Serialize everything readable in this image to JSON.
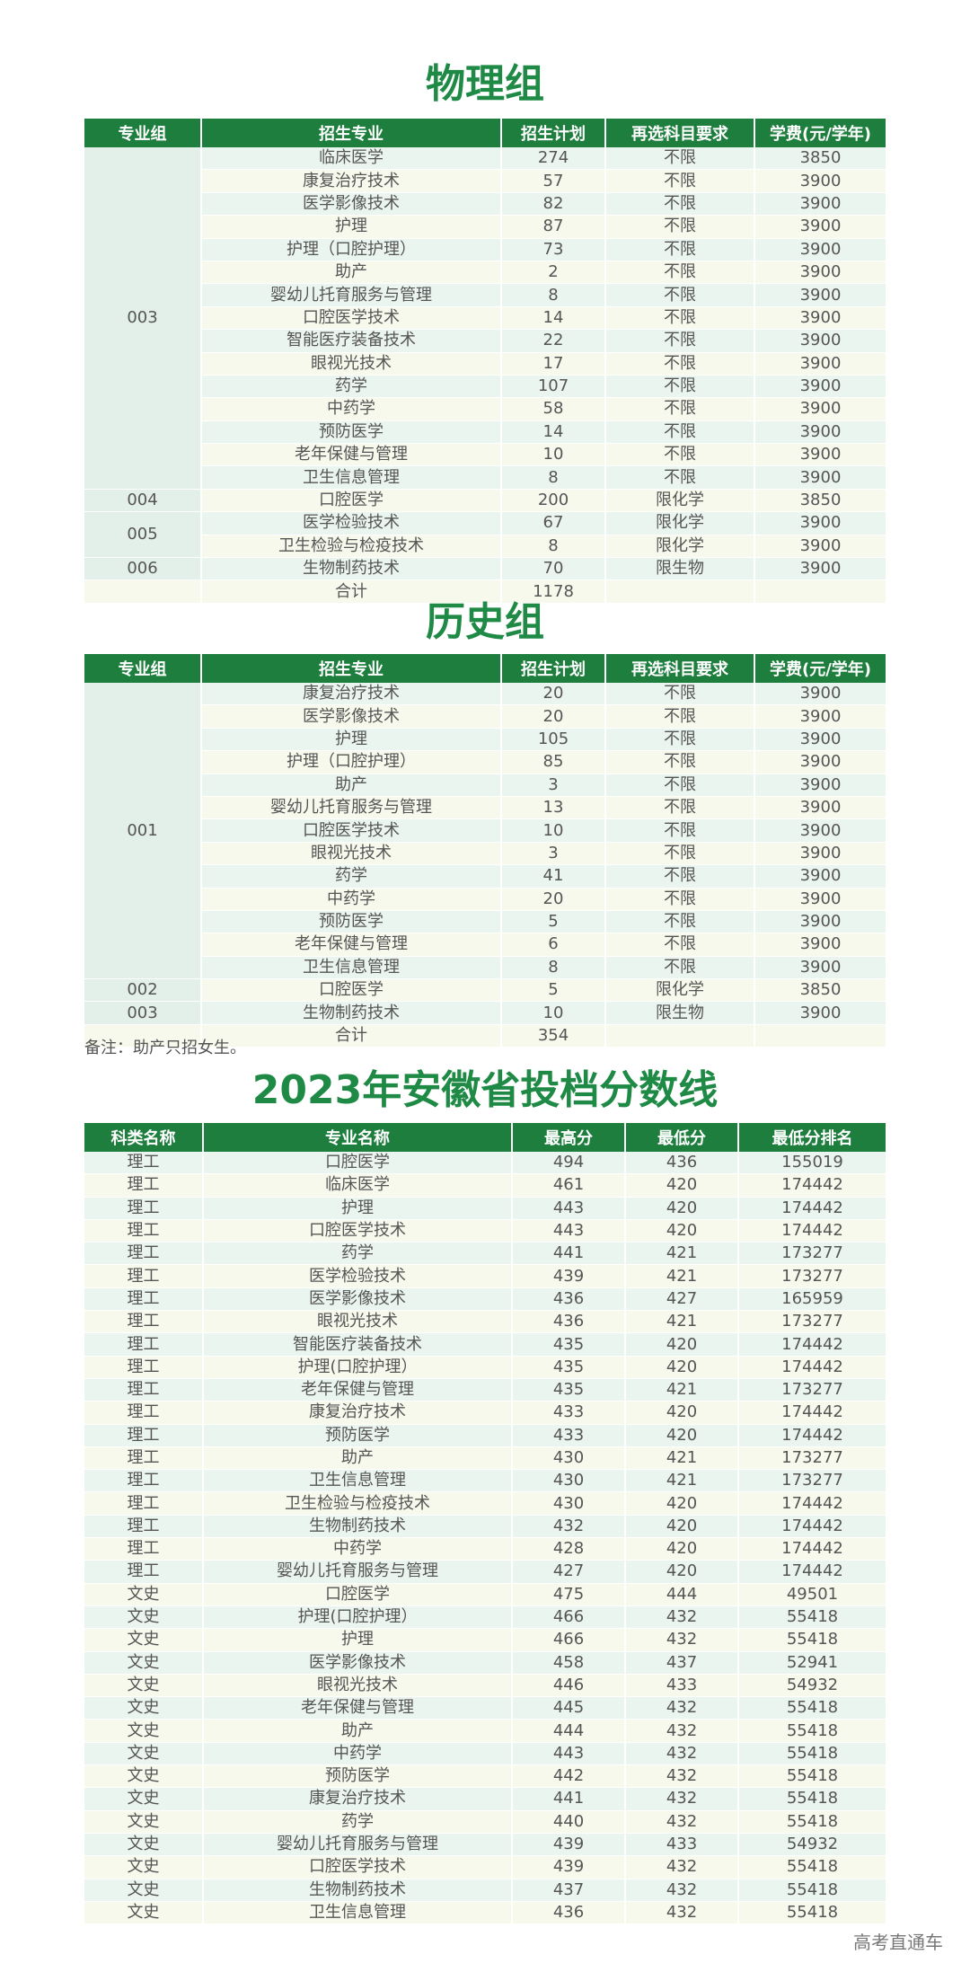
{
  "physics": {
    "title": "物理组",
    "headers": [
      "专业组",
      "招生专业",
      "招生计划",
      "再选科目要求",
      "学费(元/学年)"
    ],
    "groups": [
      {
        "group": "003",
        "rows": [
          [
            "临床医学",
            "274",
            "不限",
            "3850"
          ],
          [
            "康复治疗技术",
            "57",
            "不限",
            "3900"
          ],
          [
            "医学影像技术",
            "82",
            "不限",
            "3900"
          ],
          [
            "护理",
            "87",
            "不限",
            "3900"
          ],
          [
            "护理（口腔护理）",
            "73",
            "不限",
            "3900"
          ],
          [
            "助产",
            "2",
            "不限",
            "3900"
          ],
          [
            "婴幼儿托育服务与管理",
            "8",
            "不限",
            "3900"
          ],
          [
            "口腔医学技术",
            "14",
            "不限",
            "3900"
          ],
          [
            "智能医疗装备技术",
            "22",
            "不限",
            "3900"
          ],
          [
            "眼视光技术",
            "17",
            "不限",
            "3900"
          ],
          [
            "药学",
            "107",
            "不限",
            "3900"
          ],
          [
            "中药学",
            "58",
            "不限",
            "3900"
          ],
          [
            "预防医学",
            "14",
            "不限",
            "3900"
          ],
          [
            "老年保健与管理",
            "10",
            "不限",
            "3900"
          ],
          [
            "卫生信息管理",
            "8",
            "不限",
            "3900"
          ]
        ]
      },
      {
        "group": "004",
        "rows": [
          [
            "口腔医学",
            "200",
            "限化学",
            "3850"
          ]
        ]
      },
      {
        "group": "005",
        "rows": [
          [
            "医学检验技术",
            "67",
            "限化学",
            "3900"
          ],
          [
            "卫生检验与检疫技术",
            "8",
            "限化学",
            "3900"
          ]
        ]
      },
      {
        "group": "006",
        "rows": [
          [
            "生物制药技术",
            "70",
            "限生物",
            "3900"
          ]
        ]
      }
    ],
    "total_label": "合计",
    "total_value": "1178"
  },
  "history": {
    "title": "历史组",
    "headers": [
      "专业组",
      "招生专业",
      "招生计划",
      "再选科目要求",
      "学费(元/学年)"
    ],
    "groups": [
      {
        "group": "001",
        "rows": [
          [
            "康复治疗技术",
            "20",
            "不限",
            "3900"
          ],
          [
            "医学影像技术",
            "20",
            "不限",
            "3900"
          ],
          [
            "护理",
            "105",
            "不限",
            "3900"
          ],
          [
            "护理（口腔护理）",
            "85",
            "不限",
            "3900"
          ],
          [
            "助产",
            "3",
            "不限",
            "3900"
          ],
          [
            "婴幼儿托育服务与管理",
            "13",
            "不限",
            "3900"
          ],
          [
            "口腔医学技术",
            "10",
            "不限",
            "3900"
          ],
          [
            "眼视光技术",
            "3",
            "不限",
            "3900"
          ],
          [
            "药学",
            "41",
            "不限",
            "3900"
          ],
          [
            "中药学",
            "20",
            "不限",
            "3900"
          ],
          [
            "预防医学",
            "5",
            "不限",
            "3900"
          ],
          [
            "老年保健与管理",
            "6",
            "不限",
            "3900"
          ],
          [
            "卫生信息管理",
            "8",
            "不限",
            "3900"
          ]
        ]
      },
      {
        "group": "002",
        "rows": [
          [
            "口腔医学",
            "5",
            "限化学",
            "3850"
          ]
        ]
      },
      {
        "group": "003",
        "rows": [
          [
            "生物制药技术",
            "10",
            "限生物",
            "3900"
          ]
        ]
      }
    ],
    "total_label": "合计",
    "total_value": "354"
  },
  "note": "备注：助产只招女生。",
  "scores": {
    "title": "2023年安徽省投档分数线",
    "headers": [
      "科类名称",
      "专业名称",
      "最高分",
      "最低分",
      "最低分排名"
    ],
    "rows": [
      [
        "理工",
        "口腔医学",
        "494",
        "436",
        "155019"
      ],
      [
        "理工",
        "临床医学",
        "461",
        "420",
        "174442"
      ],
      [
        "理工",
        "护理",
        "443",
        "420",
        "174442"
      ],
      [
        "理工",
        "口腔医学技术",
        "443",
        "420",
        "174442"
      ],
      [
        "理工",
        "药学",
        "441",
        "421",
        "173277"
      ],
      [
        "理工",
        "医学检验技术",
        "439",
        "421",
        "173277"
      ],
      [
        "理工",
        "医学影像技术",
        "436",
        "427",
        "165959"
      ],
      [
        "理工",
        "眼视光技术",
        "436",
        "421",
        "173277"
      ],
      [
        "理工",
        "智能医疗装备技术",
        "435",
        "420",
        "174442"
      ],
      [
        "理工",
        "护理(口腔护理）",
        "435",
        "420",
        "174442"
      ],
      [
        "理工",
        "老年保健与管理",
        "435",
        "421",
        "173277"
      ],
      [
        "理工",
        "康复治疗技术",
        "433",
        "420",
        "174442"
      ],
      [
        "理工",
        "预防医学",
        "433",
        "420",
        "174442"
      ],
      [
        "理工",
        "助产",
        "430",
        "421",
        "173277"
      ],
      [
        "理工",
        "卫生信息管理",
        "430",
        "421",
        "173277"
      ],
      [
        "理工",
        "卫生检验与检疫技术",
        "430",
        "420",
        "174442"
      ],
      [
        "理工",
        "生物制药技术",
        "432",
        "420",
        "174442"
      ],
      [
        "理工",
        "中药学",
        "428",
        "420",
        "174442"
      ],
      [
        "理工",
        "婴幼儿托育服务与管理",
        "427",
        "420",
        "174442"
      ],
      [
        "文史",
        "口腔医学",
        "475",
        "444",
        "49501"
      ],
      [
        "文史",
        "护理(口腔护理）",
        "466",
        "432",
        "55418"
      ],
      [
        "文史",
        "护理",
        "466",
        "432",
        "55418"
      ],
      [
        "文史",
        "医学影像技术",
        "458",
        "437",
        "52941"
      ],
      [
        "文史",
        "眼视光技术",
        "446",
        "433",
        "54932"
      ],
      [
        "文史",
        "老年保健与管理",
        "445",
        "432",
        "55418"
      ],
      [
        "文史",
        "助产",
        "444",
        "432",
        "55418"
      ],
      [
        "文史",
        "中药学",
        "443",
        "432",
        "55418"
      ],
      [
        "文史",
        "预防医学",
        "442",
        "432",
        "55418"
      ],
      [
        "文史",
        "康复治疗技术",
        "441",
        "432",
        "55418"
      ],
      [
        "文史",
        "药学",
        "440",
        "432",
        "55418"
      ],
      [
        "文史",
        "婴幼儿托育服务与管理",
        "439",
        "433",
        "54932"
      ],
      [
        "文史",
        "口腔医学技术",
        "439",
        "432",
        "55418"
      ],
      [
        "文史",
        "生物制药技术",
        "437",
        "432",
        "55418"
      ],
      [
        "文史",
        "卫生信息管理",
        "436",
        "432",
        "55418"
      ]
    ]
  },
  "footer": "高考直通车"
}
